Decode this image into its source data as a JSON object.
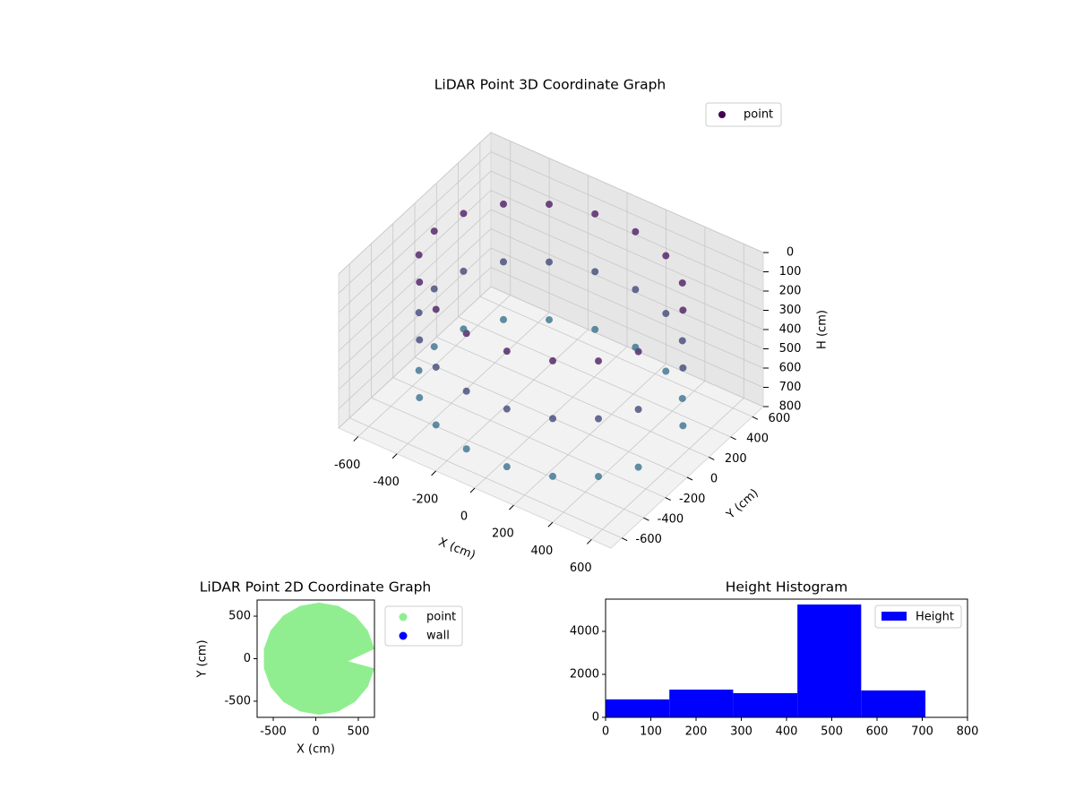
{
  "chart_data": [
    {
      "type": "scatter3d",
      "title": "LiDAR Point 3D Coordinate Graph",
      "xlabel": "X (cm)",
      "ylabel": "Y (cm)",
      "zlabel": "H (cm)",
      "xlim": [
        -700,
        700
      ],
      "ylim": [
        -700,
        700
      ],
      "zlim": [
        0,
        800
      ],
      "zinverted": true,
      "xticks": [
        -600,
        -400,
        -200,
        0,
        200,
        400,
        600
      ],
      "yticks": [
        -600,
        -400,
        -200,
        0,
        200,
        400,
        600
      ],
      "zticks": [
        0,
        100,
        200,
        300,
        400,
        500,
        600,
        700,
        800
      ],
      "cmap": [
        "#440154",
        "#2a788e"
      ],
      "legend": "upper right",
      "series": [
        {
          "name": "point",
          "color": "#440154",
          "x": [
            564,
            460,
            300,
            104,
            -104,
            -300,
            -460,
            -564,
            -600,
            -564,
            -460,
            -300,
            -104,
            104,
            300,
            460,
            564,
            564,
            460,
            300,
            104,
            -104,
            -300,
            -460,
            -564,
            -600,
            -564,
            -460,
            -300,
            -104,
            104,
            300,
            460,
            564,
            564,
            460,
            300,
            104,
            -104,
            -300,
            -460,
            -564,
            -600,
            -564,
            -460,
            -300,
            -104,
            104,
            300,
            460,
            564
          ],
          "y": [
            205,
            386,
            520,
            591,
            591,
            520,
            386,
            205,
            0,
            -205,
            -386,
            -520,
            -591,
            -591,
            -520,
            -386,
            -205,
            205,
            386,
            520,
            591,
            591,
            520,
            386,
            205,
            0,
            -205,
            -386,
            -520,
            -591,
            -591,
            -520,
            -386,
            -205,
            205,
            386,
            520,
            591,
            591,
            520,
            386,
            205,
            0,
            -205,
            -386,
            -520,
            -591,
            -591,
            -520,
            -386,
            -205
          ],
          "h": [
            100,
            100,
            100,
            100,
            100,
            100,
            100,
            100,
            100,
            100,
            100,
            100,
            100,
            100,
            100,
            100,
            100,
            400,
            400,
            400,
            400,
            400,
            400,
            400,
            400,
            400,
            400,
            400,
            400,
            400,
            400,
            400,
            400,
            400,
            700,
            700,
            700,
            700,
            700,
            700,
            700,
            700,
            700,
            700,
            700,
            700,
            700,
            700,
            700,
            700,
            700
          ]
        }
      ]
    },
    {
      "type": "scatter",
      "title": "LiDAR Point 2D Coordinate Graph",
      "xlabel": "X (cm)",
      "ylabel": "Y (cm)",
      "xlim": [
        -690,
        690
      ],
      "ylim": [
        -690,
        690
      ],
      "xticks": [
        -500,
        0,
        500
      ],
      "yticks": [
        -500,
        0,
        500
      ],
      "legend": "outside right",
      "series": [
        {
          "name": "point",
          "color": "#90ee90",
          "x": [
            690,
            612,
            464,
            266,
            40,
            -186,
            -384,
            -532,
            -610,
            -610,
            -532,
            -384,
            -186,
            40,
            266,
            464,
            612,
            690,
            380
          ],
          "y": [
            115,
            330,
            506,
            620,
            660,
            620,
            506,
            330,
            115,
            -115,
            -330,
            -506,
            -620,
            -660,
            -620,
            -506,
            -330,
            -115,
            -30
          ]
        },
        {
          "name": "wall",
          "color": "#0000ff",
          "x": [],
          "y": []
        }
      ]
    },
    {
      "type": "histogram",
      "title": "Height Histogram",
      "label": "Height",
      "color": "#0000ff",
      "bins": [
        0,
        141,
        282,
        424,
        565,
        707
      ],
      "values": [
        833,
        1290,
        1125,
        5250,
        1250
      ],
      "xlim": [
        0,
        800
      ],
      "xticks": [
        0,
        100,
        200,
        300,
        400,
        500,
        600,
        700,
        800
      ],
      "ylim": [
        0,
        5500
      ],
      "yticks": [
        0,
        2000,
        4000
      ],
      "legend": "upper right"
    }
  ]
}
